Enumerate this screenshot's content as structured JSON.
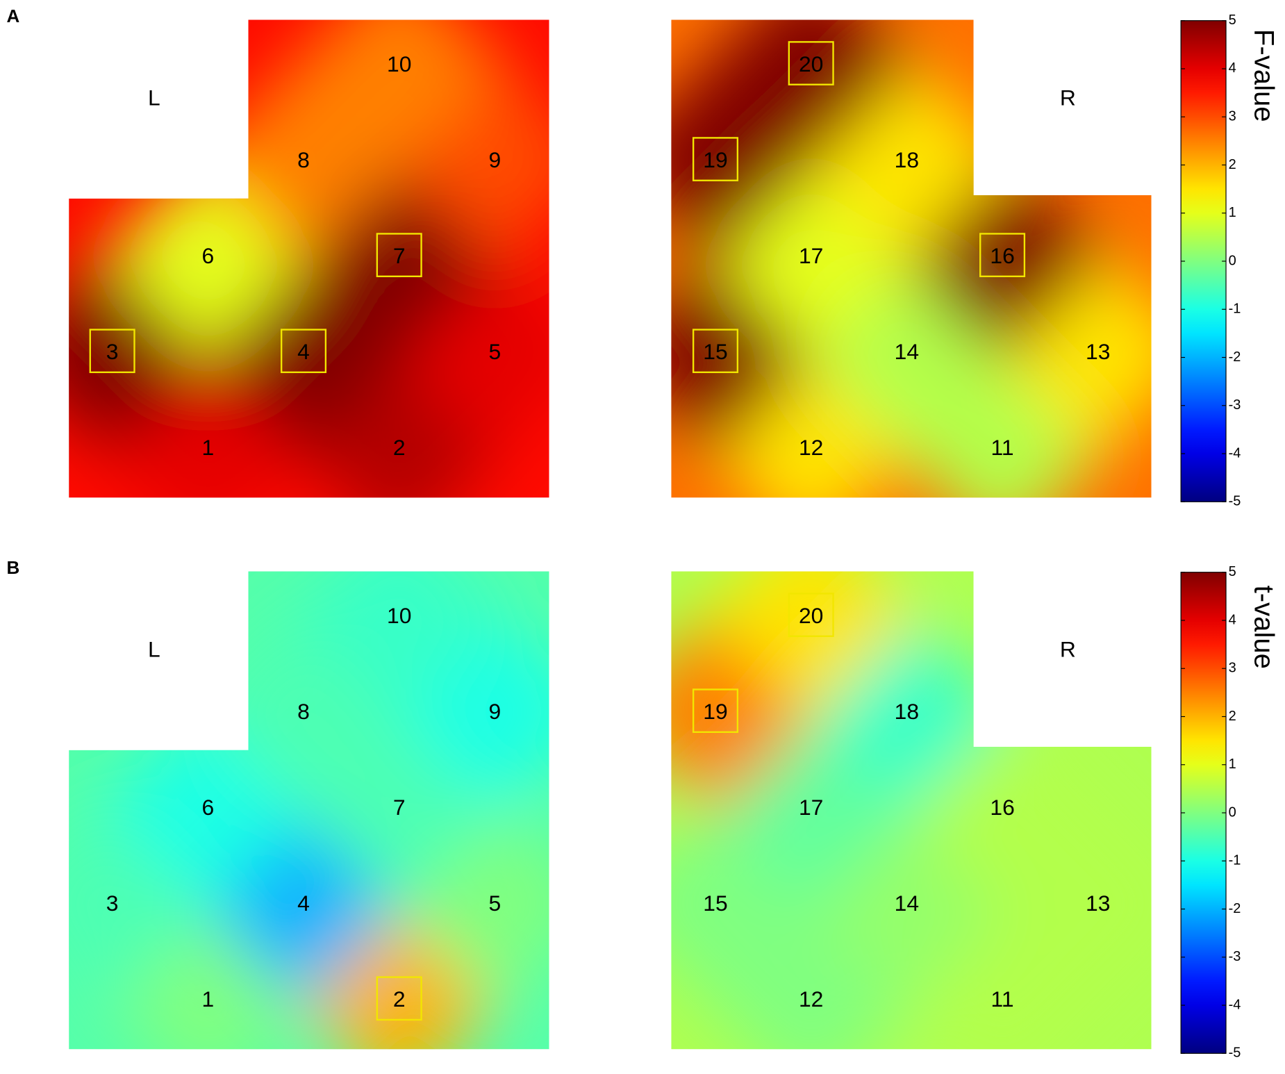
{
  "chart_data": [
    {
      "type": "topomap",
      "panel": "A",
      "colorbar_label": "F-value",
      "hemisphere_labels": [
        "L",
        "R"
      ],
      "channels": [
        "1",
        "2",
        "3",
        "4",
        "5",
        "6",
        "7",
        "8",
        "9",
        "10",
        "11",
        "12",
        "13",
        "14",
        "15",
        "16",
        "17",
        "18",
        "19",
        "20"
      ],
      "values": [
        4,
        4.5,
        5,
        5,
        4,
        1,
        5,
        2.5,
        3,
        2.5,
        0.5,
        1.5,
        1.5,
        0.5,
        5,
        5,
        1,
        1.5,
        5,
        5
      ],
      "highlighted": [
        false,
        false,
        true,
        true,
        false,
        false,
        true,
        false,
        false,
        false,
        false,
        false,
        false,
        false,
        true,
        true,
        false,
        false,
        true,
        true
      ],
      "colormap": "jet",
      "ylim": [
        -5,
        5
      ],
      "yticks": [
        5,
        4,
        3,
        2,
        1,
        0,
        -1,
        -2,
        -3,
        -4,
        -5
      ]
    },
    {
      "type": "topomap",
      "panel": "B",
      "colorbar_label": "t-value",
      "hemisphere_labels": [
        "L",
        "R"
      ],
      "channels": [
        "1",
        "2",
        "3",
        "4",
        "5",
        "6",
        "7",
        "8",
        "9",
        "10",
        "11",
        "12",
        "13",
        "14",
        "15",
        "16",
        "17",
        "18",
        "19",
        "20"
      ],
      "values": [
        0,
        2,
        -0.5,
        -2,
        0,
        -1,
        -0.5,
        -0.5,
        -1,
        -0.7,
        0.5,
        0,
        0.5,
        0.2,
        0,
        0.5,
        -0.3,
        -0.7,
        2.5,
        1.5
      ],
      "highlighted": [
        false,
        true,
        false,
        false,
        false,
        false,
        false,
        false,
        false,
        false,
        false,
        false,
        false,
        false,
        false,
        false,
        false,
        false,
        true,
        true
      ],
      "colormap": "jet",
      "ylim": [
        -5,
        5
      ],
      "yticks": [
        5,
        4,
        3,
        2,
        1,
        0,
        -1,
        -2,
        -3,
        -4,
        -5
      ]
    }
  ]
}
